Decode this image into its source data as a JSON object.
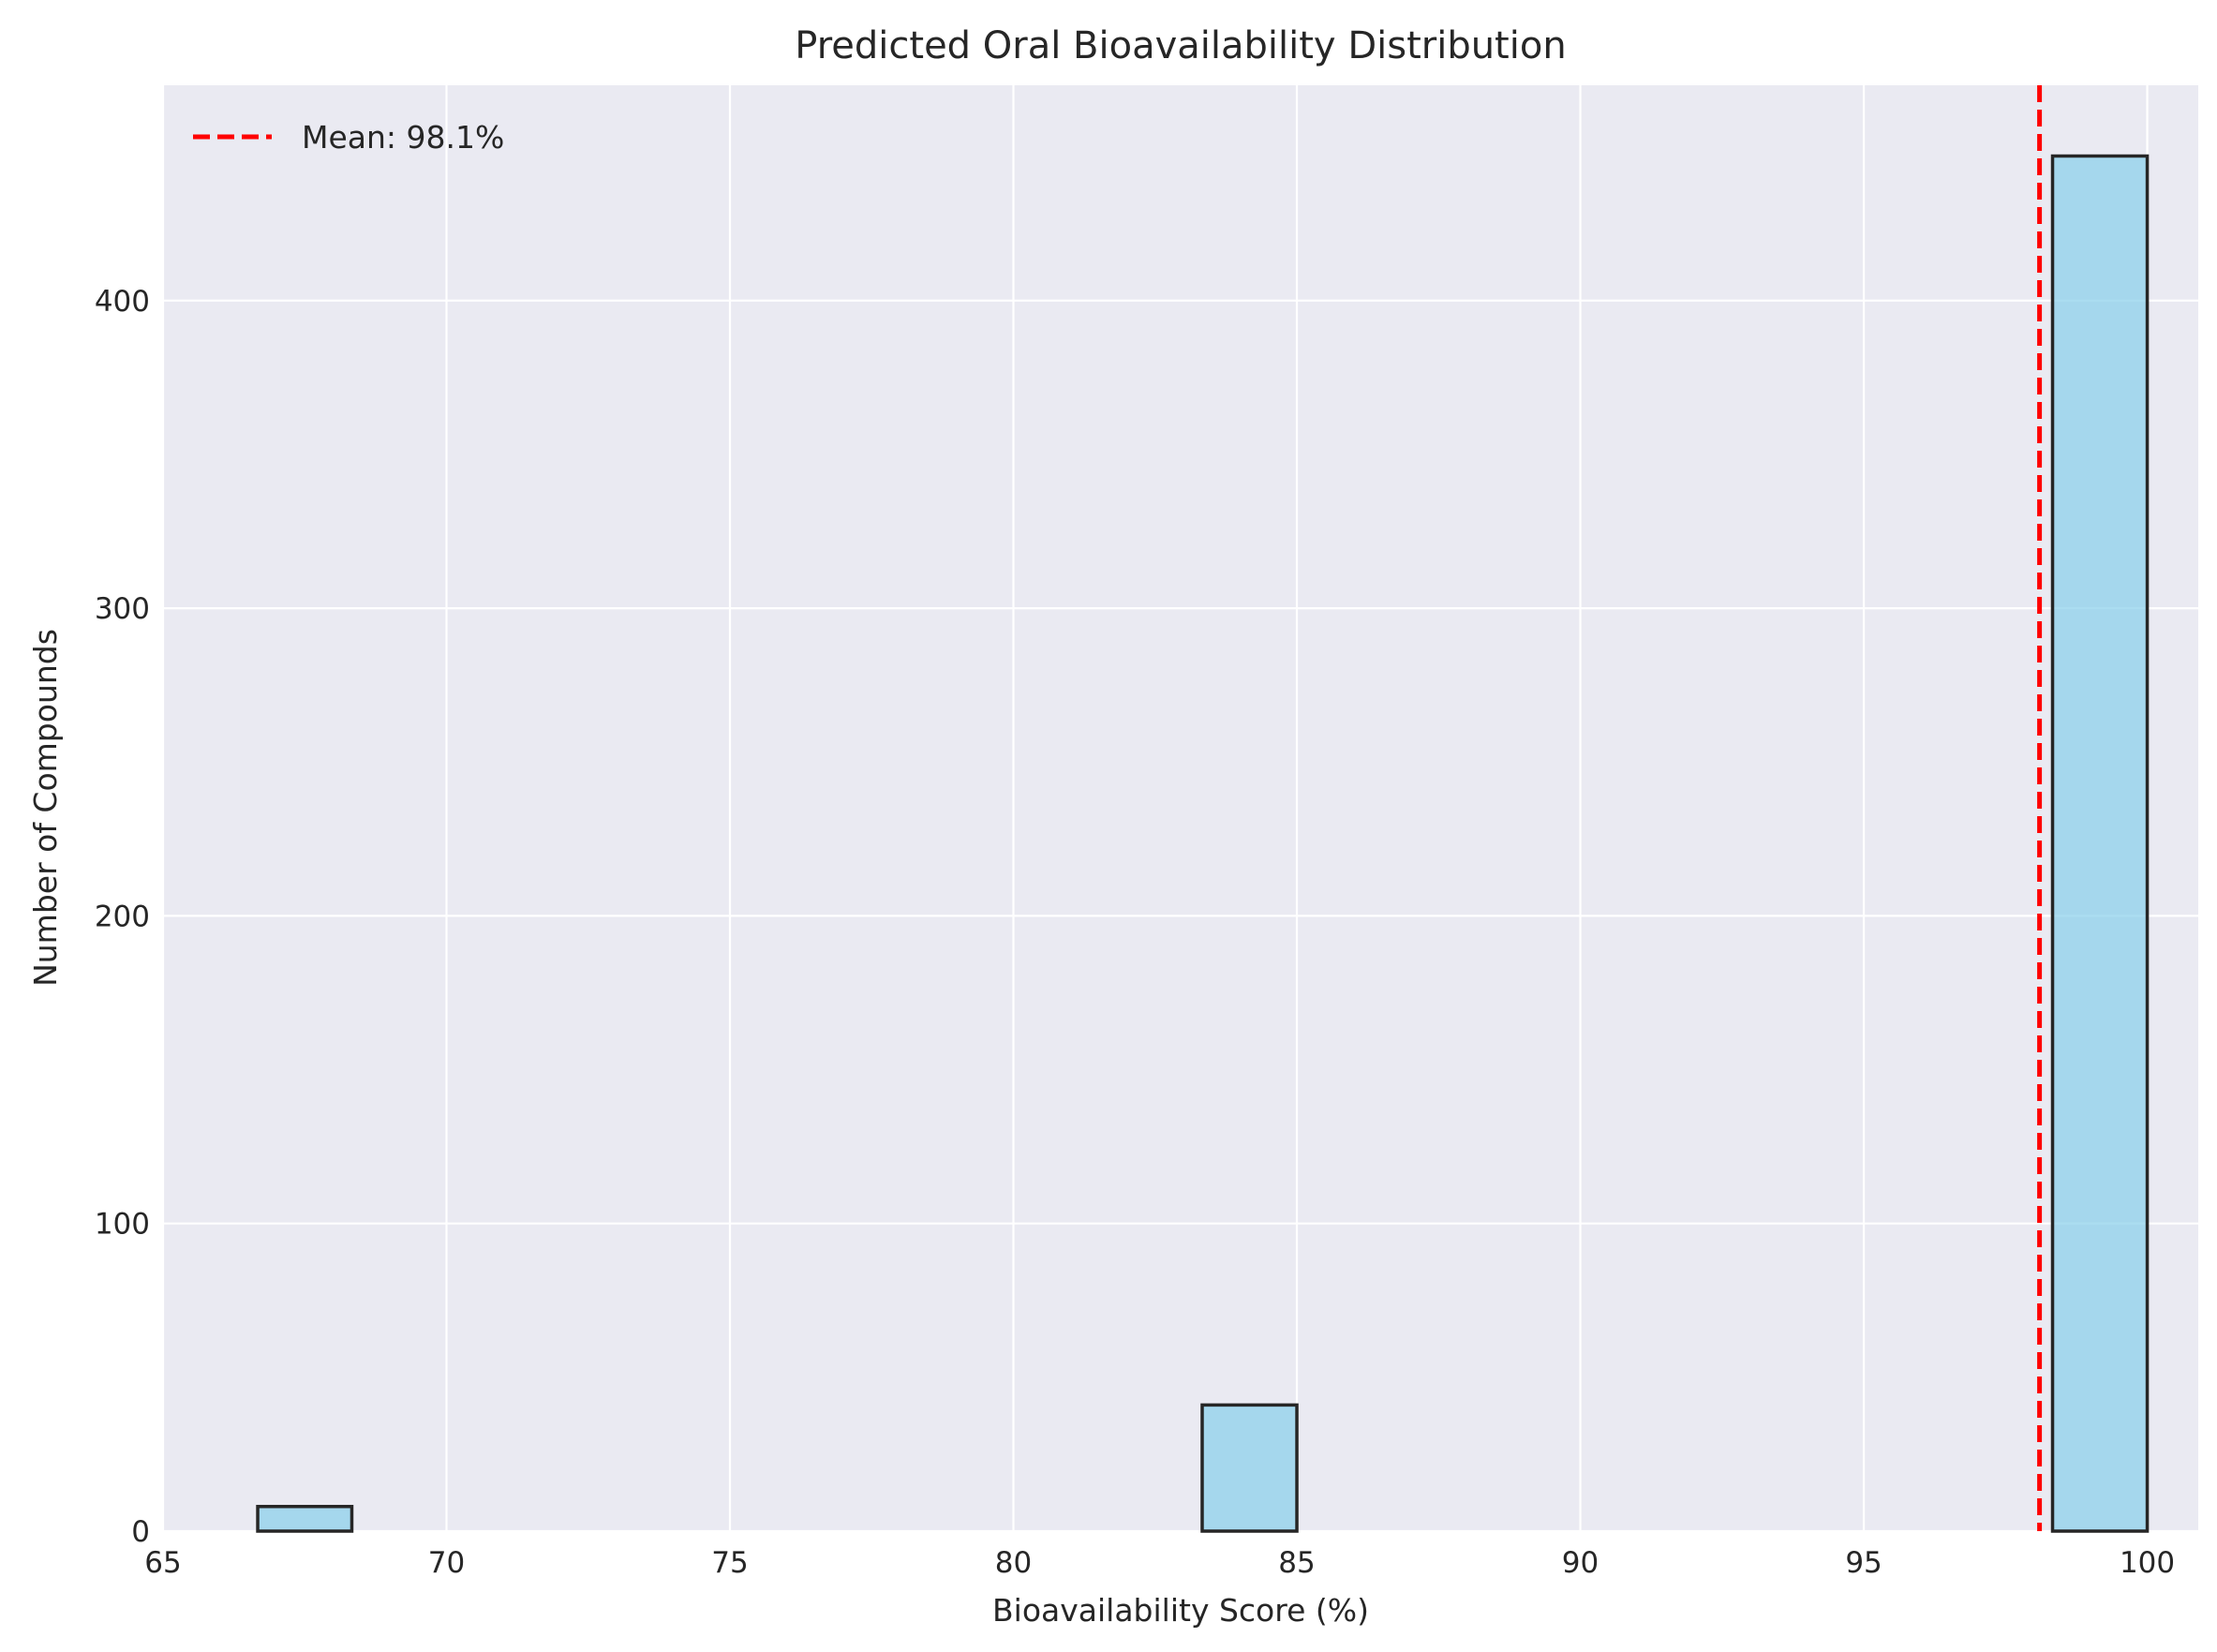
{
  "chart_data": {
    "type": "bar",
    "title": "Predicted Oral Bioavailability Distribution",
    "xlabel": "Bioavailability Score (%)",
    "ylabel": "Number of Compounds",
    "xlim": [
      65,
      100.9
    ],
    "ylim": [
      0,
      470
    ],
    "xticks": [
      65,
      70,
      75,
      80,
      85,
      90,
      95,
      100
    ],
    "yticks": [
      0,
      100,
      200,
      300,
      400
    ],
    "bin_width": 1.6667,
    "bins": [
      {
        "x_start": 66.67,
        "x_end": 68.33,
        "count": 8
      },
      {
        "x_start": 83.33,
        "x_end": 85.0,
        "count": 41
      },
      {
        "x_start": 98.33,
        "x_end": 100.0,
        "count": 447
      }
    ],
    "mean_line": {
      "x": 98.1,
      "label": "Mean: 98.1%",
      "color": "#ff0000",
      "style": "dashed"
    },
    "legend": {
      "position": "top-left",
      "entries": [
        "Mean: 98.1%"
      ]
    },
    "grid": true,
    "colors": {
      "bar_fill": "#87ceeb",
      "bar_edge": "#262626",
      "background": "#eaeaf2",
      "grid": "#ffffff"
    }
  }
}
